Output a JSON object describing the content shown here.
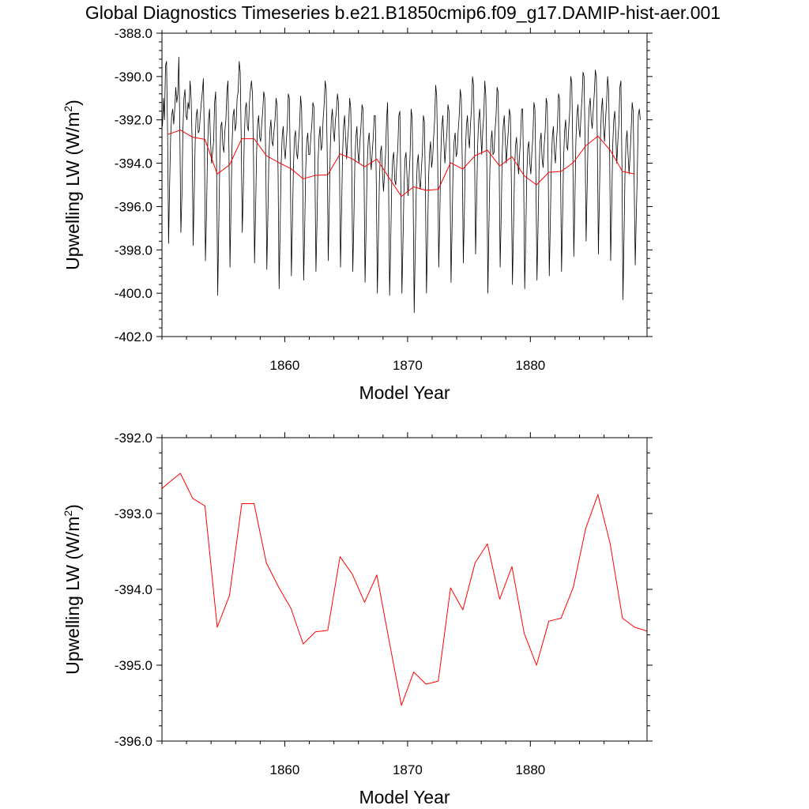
{
  "title": "Global Diagnostics Timeseries b.e21.B1850cmip6.f09_g17.DAMIP-hist-aer.001",
  "colors": {
    "monthly": "#000000",
    "annual": "#ff0000"
  },
  "chart_data": [
    {
      "type": "line",
      "title": "Global Diagnostics Timeseries b.e21.B1850cmip6.f09_g17.DAMIP-hist-aer.001",
      "xlabel": "Model Year",
      "ylabel_main": "Upwelling LW (W/m",
      "ylabel_sup": "2",
      "ylabel_close": ")",
      "xlim": [
        1850,
        1889.5
      ],
      "ylim": [
        -402.0,
        -388.0
      ],
      "xticks": [
        1860,
        1870,
        1880
      ],
      "xtick_labels": [
        "1860",
        "1870",
        "1880"
      ],
      "yticks": [
        -402.0,
        -400.0,
        -398.0,
        -396.0,
        -394.0,
        -392.0,
        -390.0,
        -388.0
      ],
      "ytick_labels": [
        "-402.0",
        "-400.0",
        "-398.0",
        "-396.0",
        "-394.0",
        "-392.0",
        "-390.0",
        "-388.0"
      ],
      "series": [
        {
          "kind": "monthly",
          "color": "#000000",
          "x_start": 1850.04,
          "x_step": 0.08333,
          "values": [
            -392.3,
            -391.0,
            -392.0,
            -389.5,
            -389.3,
            -392.5,
            -397.7,
            -395.0,
            -392.8,
            -391.8,
            -391.5,
            -392.2,
            -391.5,
            -390.5,
            -391.2,
            -390.8,
            -389.1,
            -392.5,
            -397.2,
            -395.5,
            -392.5,
            -391.0,
            -390.6,
            -391.8,
            -392.0,
            -391.2,
            -391.5,
            -390.2,
            -391.0,
            -393.0,
            -397.8,
            -395.5,
            -393.0,
            -391.8,
            -391.5,
            -392.6,
            -392.5,
            -391.8,
            -391.2,
            -390.7,
            -390.1,
            -393.0,
            -398.5,
            -396.5,
            -393.5,
            -392.0,
            -391.5,
            -393.0,
            -394.0,
            -393.5,
            -393.0,
            -391.2,
            -390.7,
            -394.5,
            -400.1,
            -397.0,
            -394.0,
            -392.3,
            -392.1,
            -393.2,
            -393.5,
            -392.5,
            -392.0,
            -390.7,
            -390.2,
            -393.5,
            -398.8,
            -396.0,
            -393.2,
            -391.8,
            -391.5,
            -392.5,
            -392.2,
            -391.0,
            -390.7,
            -389.3,
            -389.8,
            -393.0,
            -397.2,
            -395.2,
            -392.8,
            -391.5,
            -391.2,
            -392.3,
            -392.5,
            -391.2,
            -390.6,
            -390.2,
            -390.8,
            -393.8,
            -398.6,
            -396.2,
            -393.5,
            -392.2,
            -391.8,
            -392.8,
            -393.0,
            -392.2,
            -391.6,
            -390.7,
            -391.0,
            -394.0,
            -398.9,
            -396.5,
            -393.7,
            -392.5,
            -392.0,
            -393.0,
            -393.2,
            -392.5,
            -392.0,
            -391.0,
            -391.3,
            -394.5,
            -399.8,
            -397.0,
            -394.0,
            -392.8,
            -392.3,
            -393.3,
            -393.8,
            -393.0,
            -392.3,
            -390.8,
            -391.0,
            -394.3,
            -399.2,
            -396.8,
            -394.2,
            -392.8,
            -392.5,
            -393.5,
            -393.8,
            -393.0,
            -392.3,
            -390.9,
            -391.5,
            -394.5,
            -399.4,
            -397.0,
            -394.3,
            -393.0,
            -392.6,
            -393.6,
            -393.6,
            -392.8,
            -392.2,
            -391.2,
            -391.4,
            -394.3,
            -399.0,
            -396.8,
            -394.0,
            -392.8,
            -392.3,
            -393.4,
            -393.2,
            -392.0,
            -391.3,
            -390.2,
            -390.6,
            -393.5,
            -398.5,
            -396.0,
            -393.3,
            -392.0,
            -391.5,
            -392.5,
            -393.0,
            -392.0,
            -391.6,
            -390.8,
            -391.2,
            -394.0,
            -398.8,
            -396.3,
            -393.6,
            -392.3,
            -391.8,
            -392.9,
            -393.8,
            -392.9,
            -392.2,
            -391.0,
            -391.5,
            -394.3,
            -399.0,
            -396.8,
            -394.0,
            -392.8,
            -392.3,
            -393.5,
            -394.0,
            -393.0,
            -392.3,
            -391.3,
            -391.5,
            -394.5,
            -399.5,
            -397.0,
            -394.2,
            -393.0,
            -392.6,
            -393.6,
            -394.3,
            -393.5,
            -392.8,
            -391.8,
            -391.8,
            -395.0,
            -400.0,
            -397.5,
            -394.8,
            -393.5,
            -393.2,
            -394.4,
            -395.3,
            -394.5,
            -393.6,
            -392.0,
            -391.2,
            -395.0,
            -400.1,
            -397.8,
            -395.0,
            -393.8,
            -393.5,
            -394.8,
            -395.0,
            -394.0,
            -393.3,
            -391.8,
            -391.6,
            -395.3,
            -400.0,
            -397.8,
            -395.2,
            -393.8,
            -393.5,
            -394.6,
            -395.5,
            -394.6,
            -393.6,
            -391.5,
            -391.9,
            -395.5,
            -400.9,
            -398.0,
            -395.3,
            -394.0,
            -393.6,
            -394.8,
            -395.2,
            -394.3,
            -393.5,
            -391.8,
            -392.1,
            -395.2,
            -400.0,
            -397.6,
            -394.8,
            -393.5,
            -393.0,
            -394.2,
            -393.8,
            -392.8,
            -392.0,
            -390.4,
            -390.9,
            -394.0,
            -398.8,
            -396.5,
            -393.6,
            -392.3,
            -391.8,
            -393.0,
            -394.0,
            -393.2,
            -392.6,
            -391.3,
            -391.6,
            -394.6,
            -399.5,
            -397.0,
            -394.2,
            -393.0,
            -392.6,
            -393.7,
            -393.5,
            -392.5,
            -391.8,
            -390.6,
            -391.0,
            -394.0,
            -398.6,
            -396.3,
            -393.5,
            -392.3,
            -391.8,
            -392.8,
            -393.3,
            -392.2,
            -391.5,
            -390.0,
            -390.4,
            -393.5,
            -398.2,
            -395.8,
            -393.2,
            -392.0,
            -391.5,
            -392.6,
            -393.6,
            -392.5,
            -391.8,
            -390.2,
            -390.9,
            -394.2,
            -400.0,
            -397.0,
            -394.2,
            -393.0,
            -392.5,
            -393.6,
            -393.5,
            -392.5,
            -391.8,
            -390.5,
            -390.7,
            -393.9,
            -398.8,
            -396.5,
            -393.6,
            -392.3,
            -391.8,
            -392.9,
            -394.0,
            -393.2,
            -392.5,
            -391.5,
            -391.8,
            -395.0,
            -399.6,
            -397.2,
            -394.5,
            -393.2,
            -392.8,
            -393.8,
            -394.5,
            -393.6,
            -392.8,
            -391.5,
            -391.5,
            -394.8,
            -399.8,
            -397.4,
            -394.6,
            -393.3,
            -393.0,
            -394.0,
            -394.5,
            -393.5,
            -392.8,
            -391.2,
            -391.5,
            -394.9,
            -399.4,
            -397.0,
            -394.3,
            -393.0,
            -392.6,
            -393.8,
            -394.2,
            -393.2,
            -392.5,
            -391.0,
            -391.3,
            -394.5,
            -399.2,
            -396.8,
            -394.1,
            -392.8,
            -392.3,
            -393.5,
            -394.0,
            -393.0,
            -392.3,
            -390.8,
            -391.0,
            -394.2,
            -399.0,
            -396.5,
            -393.8,
            -392.5,
            -392.0,
            -393.2,
            -393.4,
            -392.4,
            -391.6,
            -390.0,
            -390.3,
            -393.5,
            -398.3,
            -395.8,
            -393.0,
            -391.8,
            -391.3,
            -392.4,
            -392.8,
            -391.8,
            -391.0,
            -389.8,
            -390.0,
            -393.0,
            -397.6,
            -395.2,
            -392.6,
            -391.4,
            -391.0,
            -392.0,
            -392.4,
            -391.5,
            -390.8,
            -389.7,
            -390.0,
            -393.0,
            -398.2,
            -395.5,
            -392.8,
            -391.5,
            -391.0,
            -392.3,
            -393.0,
            -392.0,
            -391.2,
            -390.0,
            -390.6,
            -393.6,
            -398.5,
            -396.0,
            -393.2,
            -392.0,
            -391.6,
            -392.7,
            -394.0,
            -393.0,
            -392.2,
            -390.5,
            -390.2,
            -394.0,
            -400.3,
            -397.5,
            -394.5,
            -393.0,
            -392.5,
            -393.6,
            -394.5,
            -393.6,
            -392.5,
            -391.2,
            -391.6,
            -395.0,
            -398.7,
            -396.5,
            -394.5,
            -391.8,
            -391.5,
            -392.0
          ]
        },
        {
          "kind": "annual",
          "color": "#ff0000",
          "x": [
            1850.5,
            1851.5,
            1852.5,
            1853.5,
            1854.5,
            1855.5,
            1856.5,
            1857.5,
            1858.5,
            1859.5,
            1860.5,
            1861.5,
            1862.5,
            1863.5,
            1864.5,
            1865.5,
            1866.5,
            1867.5,
            1868.5,
            1869.5,
            1870.5,
            1871.5,
            1872.5,
            1873.5,
            1874.5,
            1875.5,
            1876.5,
            1877.5,
            1878.5,
            1879.5,
            1880.5,
            1881.5,
            1882.5,
            1883.5,
            1884.5,
            1885.5,
            1886.5,
            1887.5,
            1888.5
          ],
          "values": [
            -392.67,
            -392.47,
            -392.8,
            -392.9,
            -394.5,
            -394.08,
            -392.87,
            -392.87,
            -393.65,
            -393.97,
            -394.25,
            -394.72,
            -394.56,
            -394.54,
            -393.57,
            -393.8,
            -394.17,
            -393.81,
            -394.68,
            -395.53,
            -395.09,
            -395.25,
            -395.21,
            -393.98,
            -394.27,
            -393.65,
            -393.4,
            -394.13,
            -393.7,
            -394.58,
            -395.0,
            -394.42,
            -394.38,
            -393.97,
            -393.2,
            -392.75,
            -393.4,
            -394.38,
            -394.5
          ]
        }
      ]
    },
    {
      "type": "line",
      "xlabel": "Model Year",
      "ylabel_main": "Upwelling LW (W/m",
      "ylabel_sup": "2",
      "ylabel_close": ")",
      "xlim": [
        1850,
        1889.5
      ],
      "ylim": [
        -396.0,
        -392.0
      ],
      "xticks": [
        1860,
        1870,
        1880
      ],
      "xtick_labels": [
        "1860",
        "1870",
        "1880"
      ],
      "yticks": [
        -396.0,
        -395.0,
        -394.0,
        -393.0,
        -392.0
      ],
      "ytick_labels": [
        "-396.0",
        "-395.0",
        "-394.0",
        "-393.0",
        "-392.0"
      ],
      "series": [
        {
          "kind": "annual",
          "color": "#ff0000",
          "x": [
            1850.0,
            1850.5,
            1851.5,
            1852.5,
            1853.5,
            1854.5,
            1855.5,
            1856.5,
            1857.5,
            1858.5,
            1859.5,
            1860.5,
            1861.5,
            1862.5,
            1863.5,
            1864.5,
            1865.5,
            1866.5,
            1867.5,
            1868.5,
            1869.5,
            1870.5,
            1871.5,
            1872.5,
            1873.5,
            1874.5,
            1875.5,
            1876.5,
            1877.5,
            1878.5,
            1879.5,
            1880.5,
            1881.5,
            1882.5,
            1883.5,
            1884.5,
            1885.5,
            1886.5,
            1887.5,
            1888.5,
            1889.5
          ],
          "values": [
            -392.67,
            -392.6,
            -392.47,
            -392.8,
            -392.9,
            -394.5,
            -394.08,
            -392.87,
            -392.87,
            -393.65,
            -393.97,
            -394.25,
            -394.72,
            -394.56,
            -394.54,
            -393.57,
            -393.8,
            -394.17,
            -393.81,
            -394.68,
            -395.53,
            -395.09,
            -395.25,
            -395.21,
            -393.98,
            -394.27,
            -393.65,
            -393.4,
            -394.13,
            -393.7,
            -394.58,
            -395.0,
            -394.42,
            -394.38,
            -393.97,
            -393.2,
            -392.75,
            -393.4,
            -394.38,
            -394.5,
            -394.55
          ]
        }
      ]
    }
  ]
}
